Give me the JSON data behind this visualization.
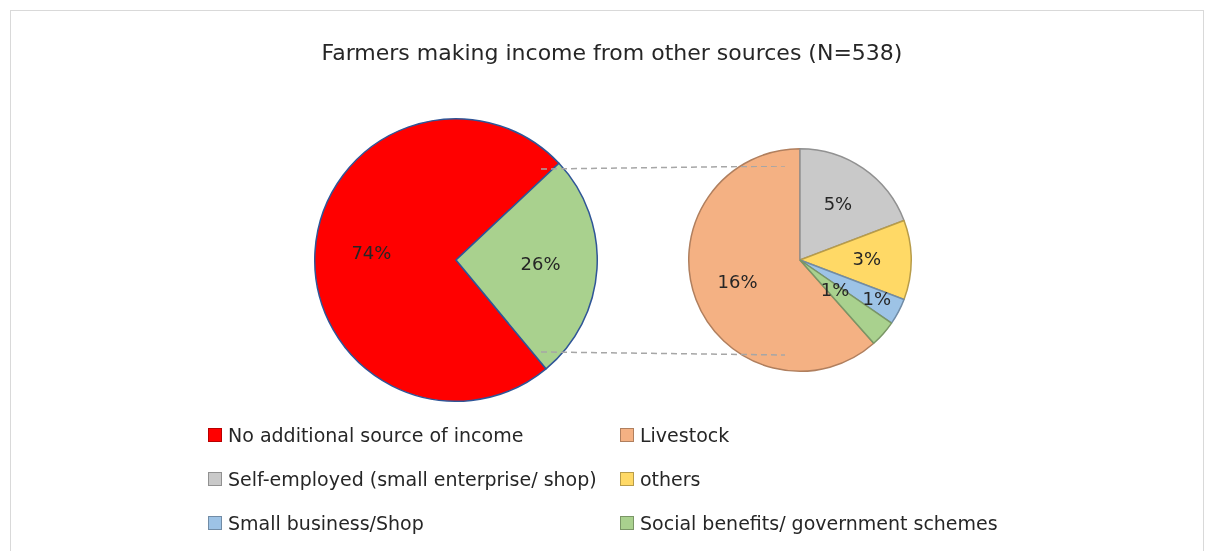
{
  "chart_data": [
    {
      "type": "pie",
      "title": "Farmers making income from other sources (N=538)",
      "categories": [
        "No additional source of income",
        null
      ],
      "values": [
        74,
        26
      ],
      "colors": [
        "#ff0000",
        "#a9d18e"
      ],
      "value_labels": [
        "74%",
        "26%"
      ],
      "legend": "bottom"
    },
    {
      "type": "pie",
      "categories": [
        "Livestock",
        "Self-employed (small enterprise/ shop)",
        "others",
        "Small business/Shop",
        "Social benefits/ government schemes"
      ],
      "values": [
        16,
        5,
        3,
        1,
        1
      ],
      "colors": [
        "#f4b183",
        "#c9c9c9",
        "#ffd966",
        "#9dc3e6",
        "#a9d18e"
      ],
      "value_labels": [
        "16%",
        "5%",
        "3%",
        "1%",
        "1%"
      ],
      "legend": "bottom"
    }
  ]
}
